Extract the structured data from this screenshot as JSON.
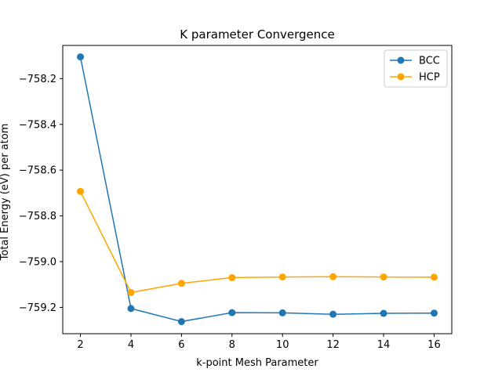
{
  "chart_data": {
    "type": "line",
    "title": "K parameter Convergence",
    "xlabel": "k-point Mesh Parameter",
    "ylabel": "Total Energy (eV) per atom",
    "x": [
      2,
      4,
      6,
      8,
      10,
      12,
      14,
      16
    ],
    "xticks": [
      "2",
      "4",
      "6",
      "8",
      "10",
      "12",
      "14",
      "16"
    ],
    "yticks": [
      "−758.2",
      "−758.4",
      "−758.6",
      "−758.8",
      "−759.0",
      "−759.2"
    ],
    "ytick_values": [
      -758.2,
      -758.4,
      -758.6,
      -758.8,
      -759.0,
      -759.2
    ],
    "xlim": [
      1.3,
      16.7
    ],
    "ylim": [
      -759.315,
      -758.055
    ],
    "grid": false,
    "legend_position": "top-right",
    "series": [
      {
        "name": "BCC",
        "color": "#1f77b4",
        "values": [
          -758.105,
          -759.205,
          -759.262,
          -759.223,
          -759.224,
          -759.23,
          -759.226,
          -759.225
        ]
      },
      {
        "name": "HCP",
        "color": "#ffa500",
        "values": [
          -758.693,
          -759.135,
          -759.095,
          -759.07,
          -759.067,
          -759.066,
          -759.067,
          -759.068
        ]
      }
    ]
  }
}
